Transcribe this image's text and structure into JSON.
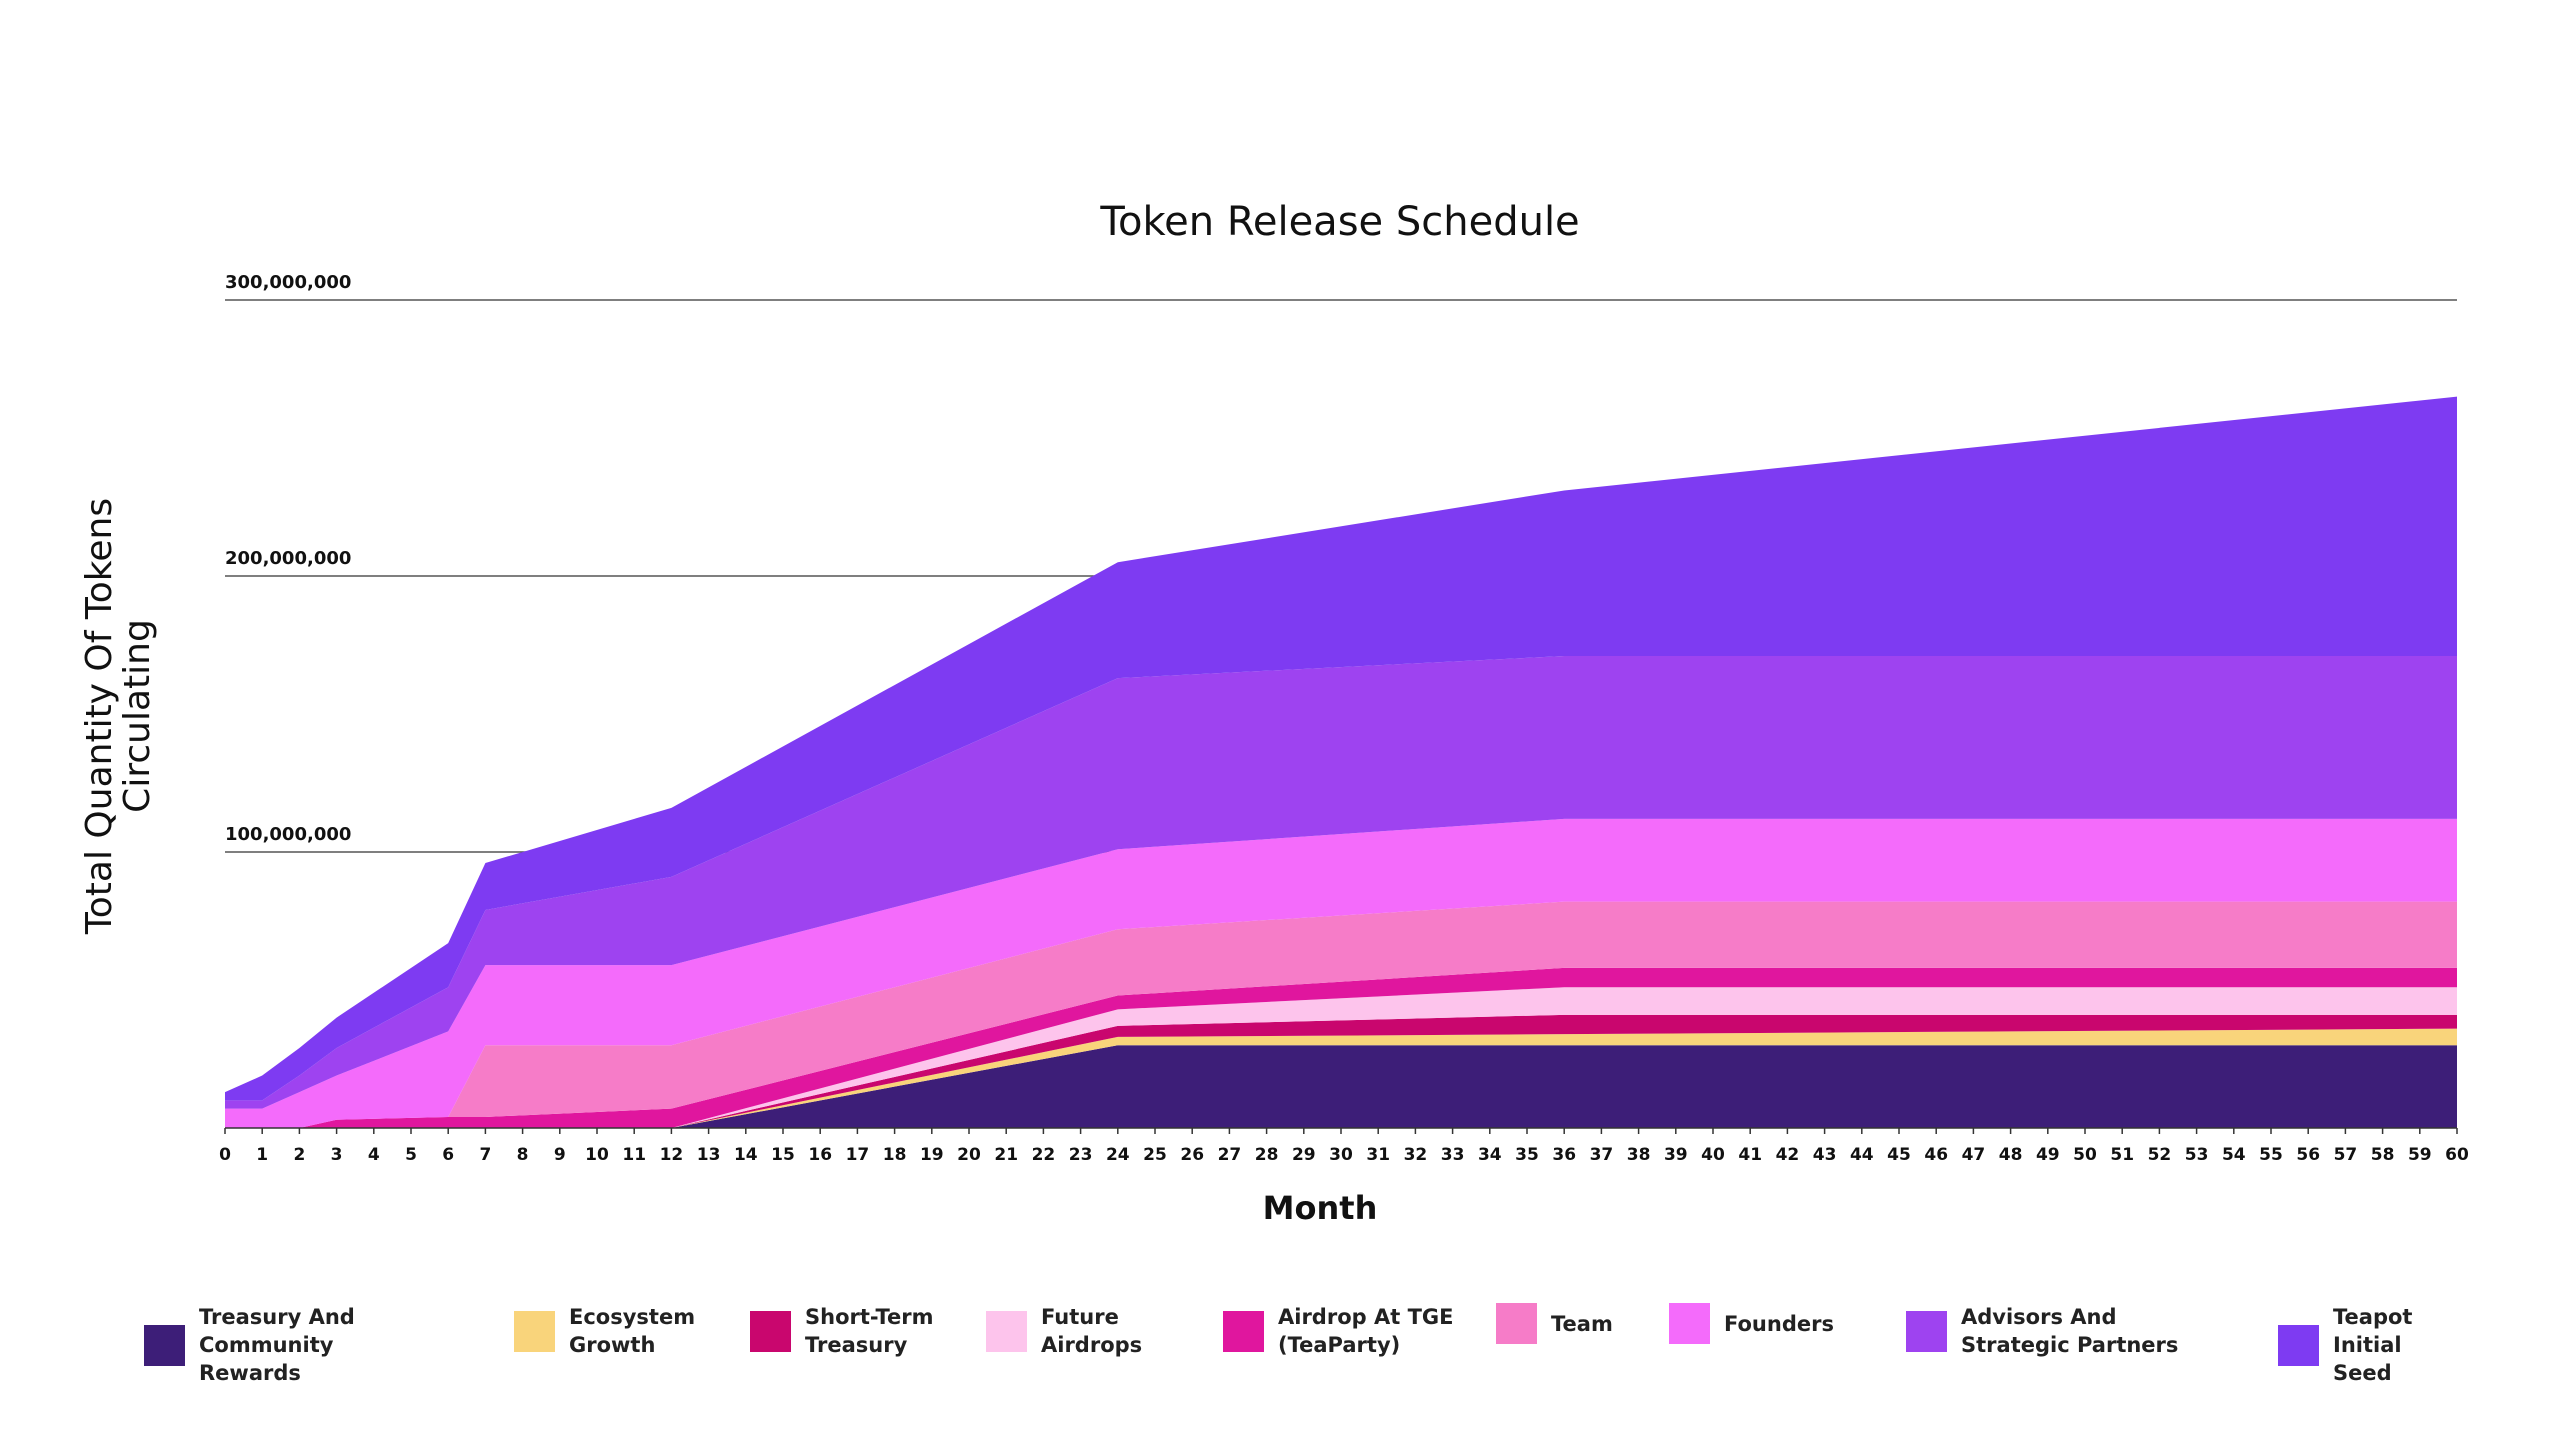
{
  "chart_data": {
    "type": "area",
    "title": "Token Release Schedule",
    "x_label": "Month",
    "y_label": "Total Quantity Of Tokens Circulating",
    "stacked": true,
    "x": [
      0,
      1,
      2,
      3,
      6,
      7,
      12,
      24,
      36,
      60
    ],
    "xlim": [
      0,
      60
    ],
    "xticks": [
      0,
      1,
      2,
      3,
      4,
      5,
      6,
      7,
      8,
      9,
      10,
      11,
      12,
      13,
      14,
      15,
      16,
      17,
      18,
      19,
      20,
      21,
      22,
      23,
      24,
      25,
      26,
      27,
      28,
      29,
      30,
      31,
      32,
      33,
      34,
      35,
      36,
      37,
      38,
      39,
      40,
      41,
      42,
      43,
      44,
      45,
      46,
      47,
      48,
      49,
      50,
      51,
      52,
      53,
      54,
      55,
      56,
      57,
      58,
      59,
      60
    ],
    "ylim": [
      0,
      300000000
    ],
    "yticks": [
      {
        "value": 100000000,
        "label": "100,000,000"
      },
      {
        "value": 200000000,
        "label": "200,000,000"
      },
      {
        "value": 300000000,
        "label": "300,000,000"
      }
    ],
    "grid": true,
    "series": [
      {
        "name": "Treasury And Community Rewards",
        "color": "#3d1e78",
        "values": [
          0,
          0,
          0,
          0,
          0,
          0,
          0,
          30000000,
          30000000,
          30000000
        ]
      },
      {
        "name": "Ecosystem Growth",
        "color": "#f9d47b",
        "values": [
          0,
          0,
          0,
          0,
          0,
          0,
          0,
          3000000,
          4000000,
          6000000
        ]
      },
      {
        "name": "Short-Term Treasury",
        "color": "#c9066e",
        "values": [
          0,
          0,
          0,
          0,
          0,
          0,
          0,
          4000000,
          7000000,
          5000000
        ]
      },
      {
        "name": "Future Airdrops",
        "color": "#fdc4ec",
        "values": [
          0,
          0,
          0,
          0,
          0,
          0,
          0,
          6000000,
          10000000,
          10000000
        ]
      },
      {
        "name": "Airdrop At TGE (TeaParty)",
        "color": "#e0169e",
        "values": [
          0,
          0,
          0,
          3000000,
          4000000,
          4000000,
          7000000,
          5000000,
          7000000,
          7000000
        ]
      },
      {
        "name": "Team",
        "color": "#f67cc8",
        "values": [
          0,
          0,
          0,
          0,
          0,
          26000000,
          23000000,
          24000000,
          24000000,
          24000000
        ]
      },
      {
        "name": "Founders",
        "color": "#f46bfb",
        "values": [
          7000000,
          7000000,
          13000000,
          16000000,
          31000000,
          29000000,
          29000000,
          29000000,
          30000000,
          30000000
        ]
      },
      {
        "name": "Advisors And Strategic Partners",
        "color": "#9e43f0",
        "values": [
          3000000,
          3000000,
          6000000,
          10000000,
          16000000,
          20000000,
          32000000,
          62000000,
          59000000,
          59000000
        ]
      },
      {
        "name": "Teapot Initial Seed",
        "color": "#7e3bf2",
        "values": [
          3000000,
          9000000,
          10000000,
          11000000,
          16000000,
          17000000,
          25000000,
          42000000,
          60000000,
          94000000
        ]
      }
    ]
  }
}
